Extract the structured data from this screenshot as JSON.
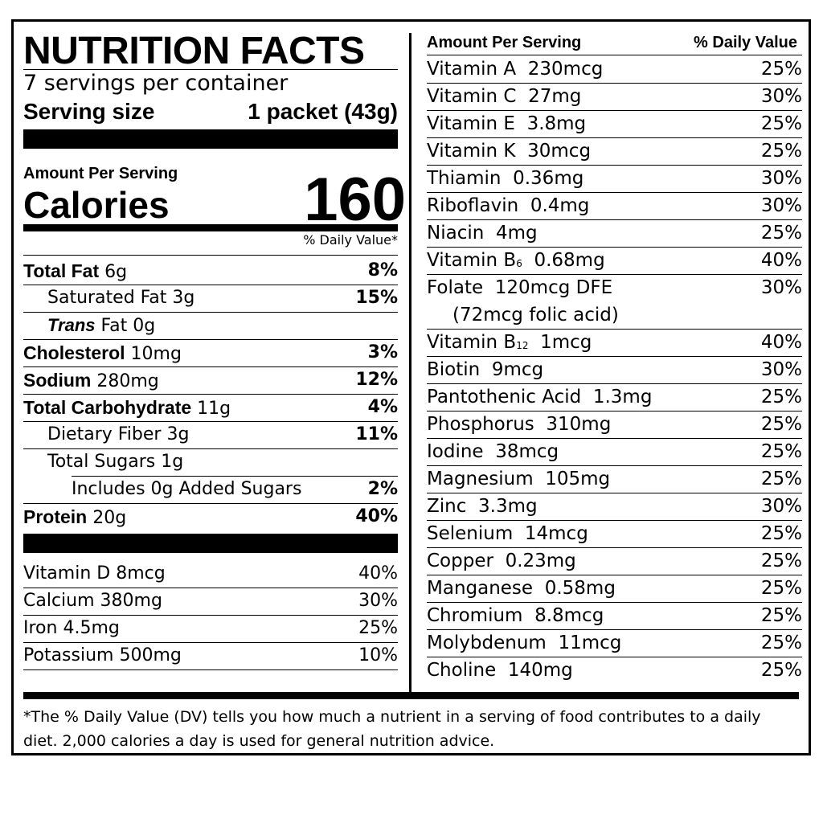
{
  "label": {
    "title": "NUTRITION FACTS",
    "servings_per_container": "7 servings per container",
    "serving_size_label": "Serving size",
    "serving_size_value": "1 packet (43g)",
    "amount_per_serving": "Amount Per Serving",
    "calories_label": "Calories",
    "calories_value": "160",
    "daily_value_header": "% Daily Value*",
    "nutrients": [
      {
        "name": "Total Fat",
        "amount": "6g",
        "dv": "8%"
      },
      {
        "name": "Saturated Fat",
        "amount": "3g",
        "dv": "15%"
      },
      {
        "name": "Trans",
        "name_suffix": "Fat",
        "amount": "0g",
        "dv": ""
      },
      {
        "name": "Cholesterol",
        "amount": "10mg",
        "dv": "3%"
      },
      {
        "name": "Sodium",
        "amount": "280mg",
        "dv": "12%"
      },
      {
        "name": "Total Carbohydrate",
        "amount": "11g",
        "dv": "4%"
      },
      {
        "name": "Dietary Fiber",
        "amount": "3g",
        "dv": "11%"
      },
      {
        "name": "Total Sugars",
        "amount": "1g",
        "dv": ""
      },
      {
        "name": "Includes 0g Added Sugars",
        "amount": "",
        "dv": "2%"
      },
      {
        "name": "Protein",
        "amount": "20g",
        "dv": "40%"
      }
    ],
    "vitamins_left": [
      {
        "name": "Vitamin D",
        "amount": "8mcg",
        "dv": "40%"
      },
      {
        "name": "Calcium",
        "amount": "380mg",
        "dv": "30%"
      },
      {
        "name": "Iron",
        "amount": "4.5mg",
        "dv": "25%"
      },
      {
        "name": "Potassium",
        "amount": "500mg",
        "dv": "10%"
      }
    ],
    "right_header_amount": "Amount Per Serving",
    "right_header_dv": "% Daily Value",
    "vitamins_right": [
      {
        "name": "Vitamin A",
        "amount": "230mcg",
        "dv": "25%"
      },
      {
        "name": "Vitamin C",
        "amount": "27mg",
        "dv": "30%"
      },
      {
        "name": "Vitamin E",
        "amount": "3.8mg",
        "dv": "25%"
      },
      {
        "name": "Vitamin K",
        "amount": "30mcg",
        "dv": "25%"
      },
      {
        "name": "Thiamin",
        "amount": "0.36mg",
        "dv": "30%"
      },
      {
        "name": "Riboflavin",
        "amount": "0.4mg",
        "dv": "30%"
      },
      {
        "name": "Niacin",
        "amount": "4mg",
        "dv": "25%"
      },
      {
        "name": "Vitamin B",
        "sub": "6",
        "amount": "0.68mg",
        "dv": "40%"
      },
      {
        "name": "Folate",
        "amount": "120mcg DFE",
        "dv": "30%"
      },
      {
        "name": "(72mcg folic acid)",
        "amount": "",
        "dv": ""
      },
      {
        "name": "Vitamin B",
        "sub": "12",
        "amount": "1mcg",
        "dv": "40%"
      },
      {
        "name": "Biotin",
        "amount": "9mcg",
        "dv": "30%"
      },
      {
        "name": "Pantothenic Acid",
        "amount": "1.3mg",
        "dv": "25%"
      },
      {
        "name": "Phosphorus",
        "amount": "310mg",
        "dv": "25%"
      },
      {
        "name": "Iodine",
        "amount": "38mcg",
        "dv": "25%"
      },
      {
        "name": "Magnesium",
        "amount": "105mg",
        "dv": "25%"
      },
      {
        "name": "Zinc",
        "amount": "3.3mg",
        "dv": "30%"
      },
      {
        "name": "Selenium",
        "amount": "14mcg",
        "dv": "25%"
      },
      {
        "name": "Copper",
        "amount": "0.23mg",
        "dv": "25%"
      },
      {
        "name": "Manganese",
        "amount": "0.58mg",
        "dv": "25%"
      },
      {
        "name": "Chromium",
        "amount": "8.8mcg",
        "dv": "25%"
      },
      {
        "name": "Molybdenum",
        "amount": "11mcg",
        "dv": "25%"
      },
      {
        "name": "Choline",
        "amount": "140mg",
        "dv": "25%"
      }
    ],
    "footnote": "*The % Daily Value (DV) tells you how much a nutrient in a serving of food contributes to a daily diet. 2,000 calories a day is used for general nutrition advice."
  }
}
